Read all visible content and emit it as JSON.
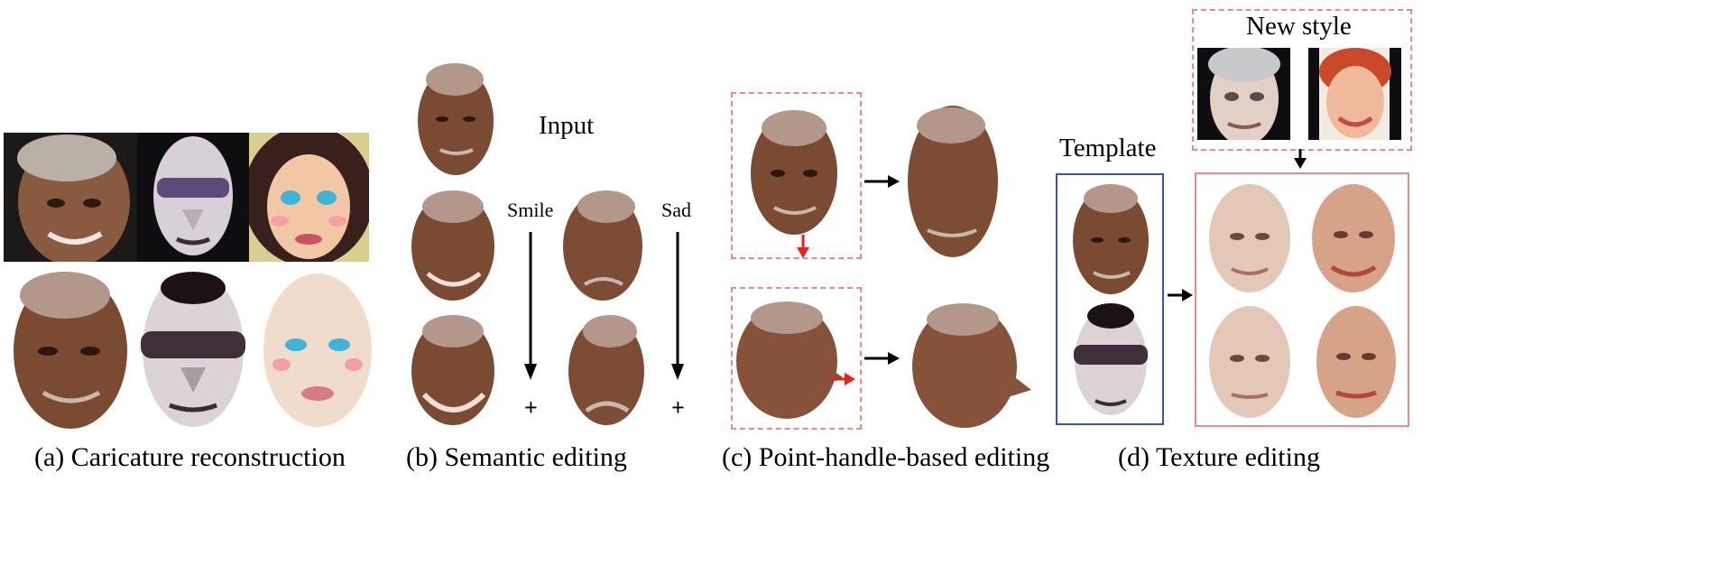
{
  "captions": {
    "a": "(a) Caricature reconstruction",
    "b": "(b) Semantic editing",
    "c": "(c) Point-handle-based editing",
    "d": "(d) Texture editing"
  },
  "labels": {
    "input": "Input",
    "smile": "Smile",
    "sad": "Sad",
    "plus": "+",
    "template": "Template",
    "new_style": "New style"
  },
  "colors": {
    "skin_dark": "#7a4a33",
    "skin_pale": "#e9d2c4",
    "skin_light": "#d8a890",
    "dashed_red": "#f08a8a",
    "template_blue": "#3a55a8",
    "arrow_red": "#e8201c"
  }
}
